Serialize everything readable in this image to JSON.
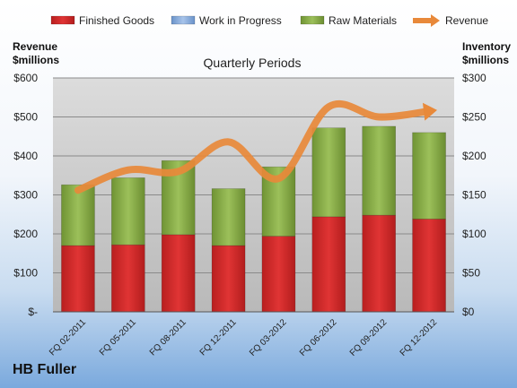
{
  "chart_data": {
    "type": "bar",
    "subtype": "stacked bar with line overlay",
    "title": "Quarterly Periods",
    "company": "HB Fuller",
    "categories": [
      "FQ 02-2011",
      "FQ 05-2011",
      "FQ 08-2011",
      "FQ 12-2011",
      "FQ 03-2012",
      "FQ 06-2012",
      "FQ 09-2012",
      "FQ 12-2012"
    ],
    "series": [
      {
        "name": "Finished Goods",
        "axis": "right",
        "color": "#cc2a2a",
        "values": [
          85,
          86,
          99,
          85,
          97,
          122,
          124,
          119
        ]
      },
      {
        "name": "Work in Progress",
        "axis": "right",
        "color": "#7ea6d9",
        "values": [
          0,
          0,
          0,
          0,
          0,
          0,
          0,
          0
        ]
      },
      {
        "name": "Raw Materials",
        "axis": "right",
        "color": "#8db04a",
        "values": [
          78,
          86,
          95,
          73,
          89,
          114,
          114,
          111
        ]
      },
      {
        "name": "Revenue",
        "type": "line",
        "axis": "left",
        "color": "#e8893a",
        "values": [
          312,
          364,
          360,
          436,
          342,
          526,
          500,
          515
        ]
      }
    ],
    "y_left": {
      "label_line1": "Revenue",
      "label_line2": "$millions",
      "range": [
        0,
        600
      ],
      "ticks": [
        {
          "value": 0,
          "label": "$-"
        },
        {
          "value": 100,
          "label": "$100"
        },
        {
          "value": 200,
          "label": "$200"
        },
        {
          "value": 300,
          "label": "$300"
        },
        {
          "value": 400,
          "label": "$400"
        },
        {
          "value": 500,
          "label": "$500"
        },
        {
          "value": 600,
          "label": "$600"
        }
      ]
    },
    "y_right": {
      "label_line1": "Inventory",
      "label_line2": "$millions",
      "range": [
        0,
        300
      ],
      "ticks": [
        {
          "value": 0,
          "label": "$0"
        },
        {
          "value": 50,
          "label": "$50"
        },
        {
          "value": 100,
          "label": "$100"
        },
        {
          "value": 150,
          "label": "$150"
        },
        {
          "value": 200,
          "label": "$200"
        },
        {
          "value": 250,
          "label": "$250"
        },
        {
          "value": 300,
          "label": "$300"
        }
      ]
    },
    "legend_position": "top",
    "grid": true
  }
}
